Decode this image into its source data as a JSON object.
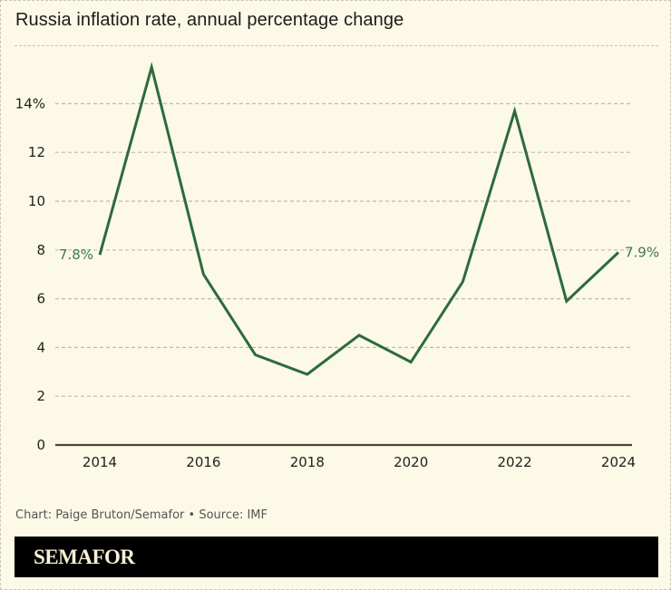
{
  "chart_data": {
    "type": "line",
    "title": "Russia inflation rate, annual percentage change",
    "xlabel": "",
    "ylabel": "",
    "x": [
      2014,
      2015,
      2016,
      2017,
      2018,
      2019,
      2020,
      2021,
      2022,
      2023,
      2024
    ],
    "series": [
      {
        "name": "Russia inflation rate",
        "values": [
          7.8,
          15.5,
          7.0,
          3.7,
          2.9,
          4.5,
          3.4,
          6.7,
          13.7,
          5.9,
          7.9
        ],
        "color": "#2d6a3e"
      }
    ],
    "xticks": [
      "2014",
      "2016",
      "2018",
      "2020",
      "2022",
      "2024"
    ],
    "yticks": [
      "0",
      "2",
      "4",
      "6",
      "8",
      "10",
      "12",
      "14%"
    ],
    "ylim": [
      0,
      16
    ],
    "xlim": [
      2014,
      2024
    ],
    "grid": true,
    "legend": "none",
    "annotations": [
      {
        "x": 2014,
        "value": 7.8,
        "text": "7.8%"
      },
      {
        "x": 2024,
        "value": 7.9,
        "text": "7.9%"
      }
    ]
  },
  "source": "Chart: Paige Bruton/Semafor • Source: IMF",
  "brand": "SEMAFOR",
  "colors": {
    "background": "#fcf9e6",
    "line": "#2d6a3e",
    "label": "#3b7a4e",
    "brand_bar": "#000000",
    "brand_text": "#f6f1d6"
  }
}
